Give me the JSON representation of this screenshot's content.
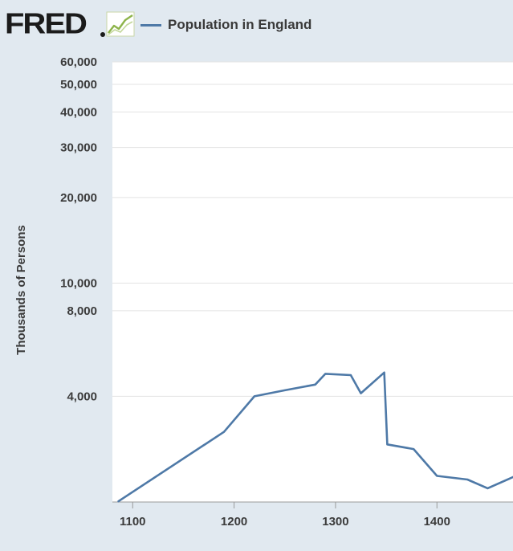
{
  "brand": {
    "logo_text": "FRED",
    "icon": "line-graph-icon"
  },
  "legend": {
    "label": "Population in England",
    "color": "#4e79a7"
  },
  "chart_data": {
    "type": "line",
    "title": "Population in England",
    "xlabel": "",
    "ylabel": "Thousands of Persons",
    "yscale": "log",
    "xlim": [
      1080,
      1475
    ],
    "ylim": [
      1700,
      60000
    ],
    "x_ticks": [
      {
        "value": 1100,
        "label": "1100"
      },
      {
        "value": 1200,
        "label": "1200"
      },
      {
        "value": 1300,
        "label": "1300"
      },
      {
        "value": 1400,
        "label": "1400"
      }
    ],
    "y_ticks": [
      {
        "value": 4000,
        "label": "4,000"
      },
      {
        "value": 8000,
        "label": "8,000"
      },
      {
        "value": 10000,
        "label": "10,000"
      },
      {
        "value": 20000,
        "label": "20,000"
      },
      {
        "value": 30000,
        "label": "30,000"
      },
      {
        "value": 40000,
        "label": "40,000"
      },
      {
        "value": 50000,
        "label": "50,000"
      },
      {
        "value": 60000,
        "label": "60,000"
      }
    ],
    "grid": true,
    "series": [
      {
        "name": "Population in England",
        "color": "#4e79a7",
        "x": [
          1086,
          1190,
          1220,
          1250,
          1280,
          1290,
          1315,
          1325,
          1348,
          1351,
          1377,
          1400,
          1430,
          1450,
          1475
        ],
        "values": [
          1710,
          3000,
          4000,
          4200,
          4400,
          4800,
          4750,
          4100,
          4850,
          2710,
          2610,
          2100,
          2040,
          1900,
          2080
        ]
      }
    ]
  }
}
